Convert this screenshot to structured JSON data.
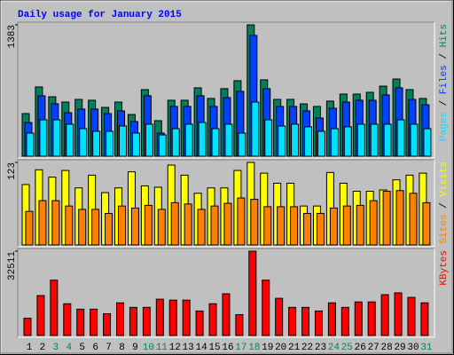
{
  "chart_data": [
    {
      "type": "bar",
      "title": "Daily usage for January 2015",
      "ylim": [
        0,
        1383
      ],
      "yticks": [
        1383
      ],
      "legend_separator": " / ",
      "series": [
        {
          "name": "Hits",
          "color": "#00805c",
          "values": [
            449,
            729,
            626,
            570,
            598,
            589,
            514,
            570,
            439,
            701,
            374,
            589,
            589,
            720,
            608,
            711,
            795,
            1383,
            804,
            598,
            598,
            551,
            524,
            580,
            654,
            654,
            673,
            738,
            813,
            701,
            608
          ]
        },
        {
          "name": "Files",
          "color": "#0040ff",
          "values": [
            355,
            636,
            552,
            458,
            496,
            496,
            449,
            477,
            365,
            636,
            243,
            524,
            524,
            636,
            524,
            617,
            683,
            1272,
            711,
            524,
            524,
            477,
            402,
            505,
            570,
            589,
            589,
            645,
            720,
            598,
            542
          ]
        },
        {
          "name": "Pages",
          "color": "#00e0ff",
          "values": [
            243,
            383,
            383,
            337,
            290,
            262,
            262,
            318,
            243,
            337,
            224,
            290,
            337,
            355,
            290,
            337,
            243,
            570,
            383,
            318,
            337,
            309,
            262,
            290,
            309,
            337,
            337,
            337,
            383,
            337,
            290
          ]
        }
      ]
    },
    {
      "type": "bar",
      "ylim": [
        0,
        123
      ],
      "yticks": [
        123
      ],
      "legend_separator": " / ",
      "series": [
        {
          "name": "Visits",
          "color": "#ffff00",
          "values": [
            90,
            112,
            101,
            111,
            85,
            104,
            78,
            85,
            109,
            88,
            86,
            119,
            104,
            77,
            85,
            85,
            111,
            123,
            107,
            92,
            92,
            58,
            58,
            108,
            92,
            80,
            80,
            82,
            97,
            104,
            107
          ]
        },
        {
          "name": "Sites",
          "color": "#ff8000",
          "values": [
            50,
            66,
            66,
            58,
            53,
            53,
            47,
            58,
            55,
            59,
            53,
            63,
            61,
            53,
            58,
            62,
            70,
            68,
            57,
            57,
            57,
            47,
            47,
            55,
            58,
            59,
            66,
            80,
            81,
            77,
            63
          ]
        }
      ]
    },
    {
      "type": "bar",
      "ylim": [
        0,
        32511
      ],
      "yticks": [
        32511
      ],
      "categories": [
        "1",
        "2",
        "3",
        "4",
        "5",
        "6",
        "7",
        "8",
        "9",
        "10",
        "11",
        "12",
        "13",
        "14",
        "15",
        "16",
        "17",
        "18",
        "19",
        "20",
        "21",
        "22",
        "23",
        "24",
        "25",
        "26",
        "27",
        "28",
        "29",
        "30",
        "31"
      ],
      "category_colors": [
        "#000000",
        "#000000",
        "#00805c",
        "#00805c",
        "#000000",
        "#000000",
        "#000000",
        "#000000",
        "#000000",
        "#00805c",
        "#00805c",
        "#000000",
        "#000000",
        "#000000",
        "#000000",
        "#000000",
        "#00805c",
        "#00805c",
        "#000000",
        "#000000",
        "#000000",
        "#000000",
        "#000000",
        "#00805c",
        "#00805c",
        "#000000",
        "#000000",
        "#000000",
        "#000000",
        "#000000",
        "#00805c"
      ],
      "series": [
        {
          "name": "KBytes",
          "color": "#ff0000",
          "values": [
            6642,
            15382,
            21326,
            12236,
            10138,
            10138,
            8390,
            12586,
            10838,
            10838,
            13985,
            13635,
            13635,
            9439,
            12236,
            16082,
            8041,
            32511,
            21326,
            14334,
            10838,
            10838,
            9439,
            12586,
            10838,
            12935,
            12935,
            15732,
            16431,
            14684,
            12586
          ]
        }
      ]
    }
  ]
}
